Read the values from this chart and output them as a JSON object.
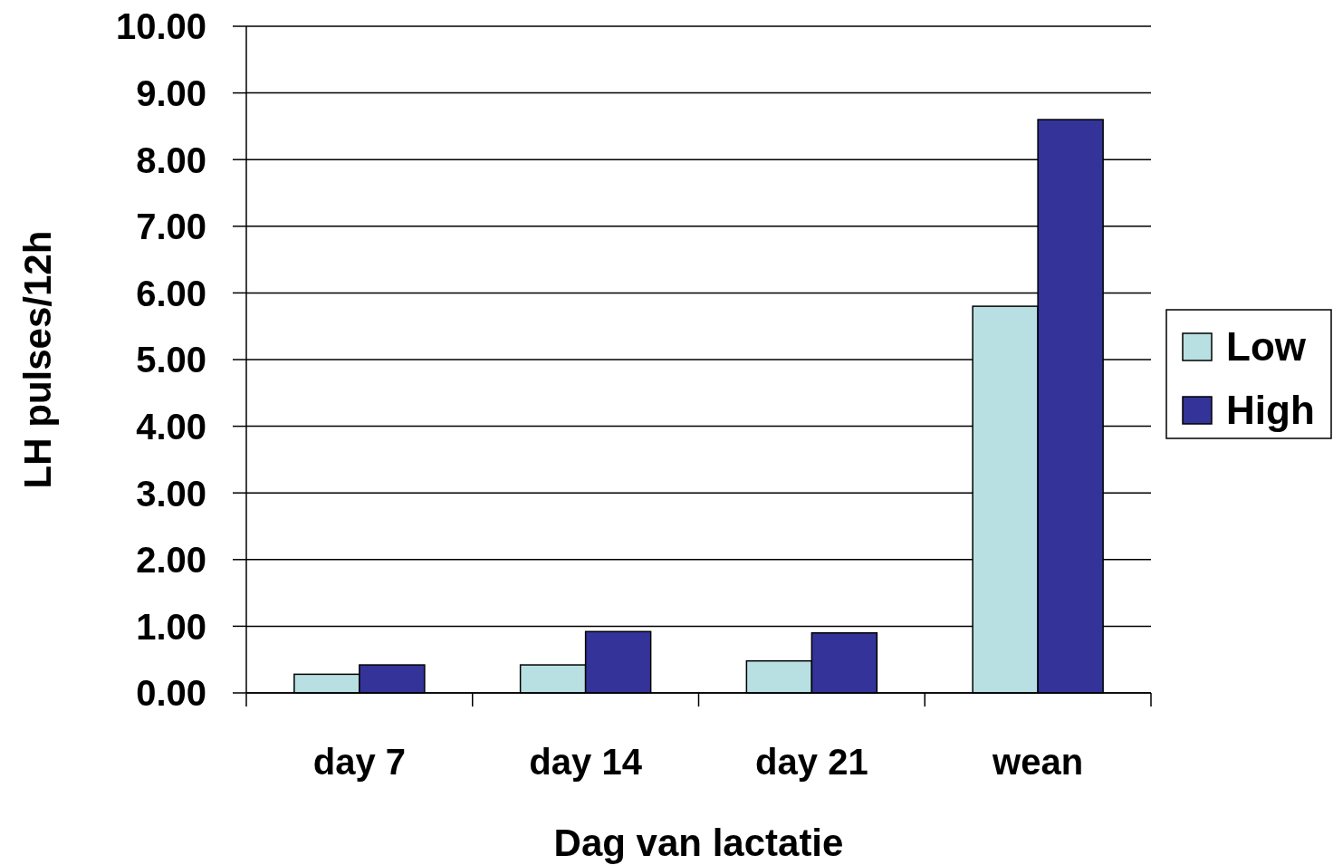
{
  "chart_data": {
    "type": "bar",
    "xlabel": "Dag van lactatie",
    "ylabel": "LH pulses/12h",
    "categories": [
      "day 7",
      "day 14",
      "day 21",
      "wean"
    ],
    "series": [
      {
        "name": "Low",
        "color": "#b8e0e2",
        "values": [
          0.28,
          0.42,
          0.48,
          5.8
        ]
      },
      {
        "name": "High",
        "color": "#333399",
        "values": [
          0.42,
          0.92,
          0.9,
          8.6
        ]
      }
    ],
    "ylim": [
      0,
      10
    ],
    "yticks": [
      {
        "value": 0,
        "label": "0.00"
      },
      {
        "value": 1,
        "label": "1.00"
      },
      {
        "value": 2,
        "label": "2.00"
      },
      {
        "value": 3,
        "label": "3.00"
      },
      {
        "value": 4,
        "label": "4.00"
      },
      {
        "value": 5,
        "label": "5.00"
      },
      {
        "value": 6,
        "label": "6.00"
      },
      {
        "value": 7,
        "label": "7.00"
      },
      {
        "value": 8,
        "label": "8.00"
      },
      {
        "value": 9,
        "label": "9.00"
      },
      {
        "value": 10,
        "label": "10.00"
      }
    ],
    "grid": "y",
    "legend": "right"
  }
}
